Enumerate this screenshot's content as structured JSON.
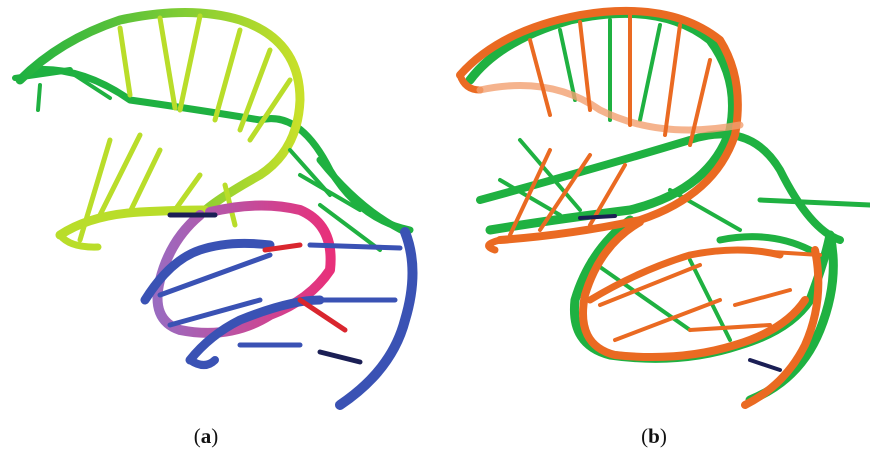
{
  "figure": {
    "panels": [
      {
        "label_open": "(",
        "label_letter": "a",
        "label_close": ")"
      },
      {
        "label_open": "(",
        "label_letter": "b",
        "label_close": ")"
      }
    ],
    "colors": {
      "green": "#1fb141",
      "yellow_green": "#b9dd2a",
      "magenta": "#e8307a",
      "purple": "#9a6bc0",
      "blue": "#3a52b4",
      "red": "#d9262e",
      "orange": "#ea6a22",
      "dark_navy": "#1b1f55"
    }
  }
}
